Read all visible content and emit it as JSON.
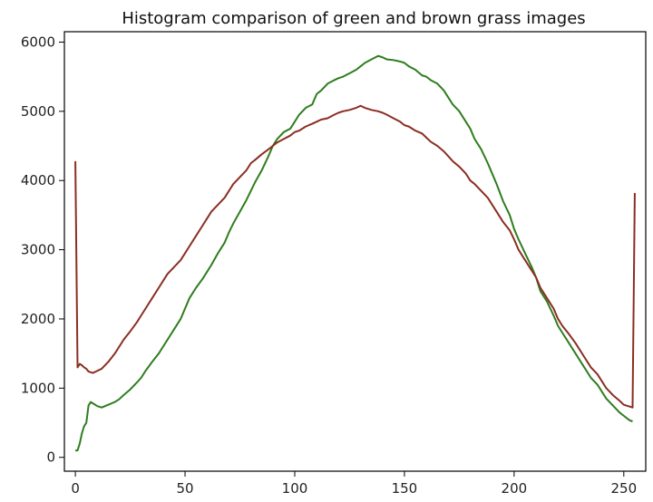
{
  "chart_data": {
    "type": "line",
    "title": "Histogram comparison of green and brown grass images",
    "xlabel": "",
    "ylabel": "",
    "xlim": [
      -5,
      260
    ],
    "ylim": [
      -200,
      6150
    ],
    "xticks": [
      0,
      50,
      100,
      150,
      200,
      250
    ],
    "yticks": [
      0,
      1000,
      2000,
      3000,
      4000,
      5000,
      6000
    ],
    "grid": false,
    "legend": "none",
    "series": [
      {
        "color": "#2e7d1e",
        "points": [
          [
            0,
            100
          ],
          [
            1,
            100
          ],
          [
            2,
            200
          ],
          [
            3,
            350
          ],
          [
            4,
            450
          ],
          [
            5,
            500
          ],
          [
            6,
            750
          ],
          [
            7,
            800
          ],
          [
            8,
            780
          ],
          [
            10,
            740
          ],
          [
            12,
            720
          ],
          [
            15,
            760
          ],
          [
            18,
            800
          ],
          [
            20,
            840
          ],
          [
            22,
            900
          ],
          [
            25,
            980
          ],
          [
            28,
            1080
          ],
          [
            30,
            1150
          ],
          [
            32,
            1250
          ],
          [
            35,
            1380
          ],
          [
            38,
            1500
          ],
          [
            40,
            1600
          ],
          [
            42,
            1700
          ],
          [
            45,
            1850
          ],
          [
            48,
            2000
          ],
          [
            50,
            2150
          ],
          [
            52,
            2300
          ],
          [
            55,
            2450
          ],
          [
            58,
            2580
          ],
          [
            60,
            2680
          ],
          [
            62,
            2780
          ],
          [
            65,
            2950
          ],
          [
            68,
            3100
          ],
          [
            70,
            3250
          ],
          [
            72,
            3380
          ],
          [
            75,
            3550
          ],
          [
            78,
            3720
          ],
          [
            80,
            3850
          ],
          [
            82,
            3980
          ],
          [
            85,
            4150
          ],
          [
            88,
            4350
          ],
          [
            90,
            4500
          ],
          [
            92,
            4600
          ],
          [
            95,
            4700
          ],
          [
            98,
            4750
          ],
          [
            100,
            4850
          ],
          [
            102,
            4950
          ],
          [
            105,
            5050
          ],
          [
            108,
            5100
          ],
          [
            110,
            5250
          ],
          [
            112,
            5300
          ],
          [
            115,
            5400
          ],
          [
            118,
            5450
          ],
          [
            120,
            5480
          ],
          [
            122,
            5500
          ],
          [
            125,
            5550
          ],
          [
            128,
            5600
          ],
          [
            130,
            5650
          ],
          [
            132,
            5700
          ],
          [
            135,
            5750
          ],
          [
            138,
            5800
          ],
          [
            140,
            5780
          ],
          [
            142,
            5750
          ],
          [
            145,
            5740
          ],
          [
            148,
            5720
          ],
          [
            150,
            5700
          ],
          [
            152,
            5650
          ],
          [
            155,
            5600
          ],
          [
            158,
            5520
          ],
          [
            160,
            5500
          ],
          [
            162,
            5450
          ],
          [
            165,
            5400
          ],
          [
            168,
            5300
          ],
          [
            170,
            5200
          ],
          [
            172,
            5100
          ],
          [
            175,
            5000
          ],
          [
            178,
            4850
          ],
          [
            180,
            4750
          ],
          [
            182,
            4600
          ],
          [
            185,
            4450
          ],
          [
            188,
            4250
          ],
          [
            190,
            4100
          ],
          [
            192,
            3950
          ],
          [
            195,
            3700
          ],
          [
            198,
            3500
          ],
          [
            200,
            3300
          ],
          [
            202,
            3150
          ],
          [
            205,
            2950
          ],
          [
            208,
            2750
          ],
          [
            210,
            2600
          ],
          [
            212,
            2400
          ],
          [
            215,
            2250
          ],
          [
            218,
            2050
          ],
          [
            220,
            1900
          ],
          [
            222,
            1800
          ],
          [
            225,
            1650
          ],
          [
            228,
            1500
          ],
          [
            230,
            1400
          ],
          [
            232,
            1300
          ],
          [
            235,
            1150
          ],
          [
            238,
            1050
          ],
          [
            240,
            950
          ],
          [
            242,
            850
          ],
          [
            245,
            750
          ],
          [
            248,
            650
          ],
          [
            250,
            600
          ],
          [
            252,
            550
          ],
          [
            253,
            530
          ],
          [
            254,
            520
          ]
        ]
      },
      {
        "color": "#8b2e22",
        "points": [
          [
            0,
            4280
          ],
          [
            1,
            1300
          ],
          [
            2,
            1350
          ],
          [
            3,
            1330
          ],
          [
            4,
            1300
          ],
          [
            5,
            1280
          ],
          [
            6,
            1240
          ],
          [
            8,
            1220
          ],
          [
            10,
            1250
          ],
          [
            12,
            1280
          ],
          [
            15,
            1380
          ],
          [
            18,
            1500
          ],
          [
            20,
            1600
          ],
          [
            22,
            1700
          ],
          [
            25,
            1820
          ],
          [
            28,
            1950
          ],
          [
            30,
            2050
          ],
          [
            32,
            2150
          ],
          [
            35,
            2300
          ],
          [
            38,
            2450
          ],
          [
            40,
            2550
          ],
          [
            42,
            2650
          ],
          [
            45,
            2750
          ],
          [
            48,
            2850
          ],
          [
            50,
            2950
          ],
          [
            52,
            3050
          ],
          [
            55,
            3200
          ],
          [
            58,
            3350
          ],
          [
            60,
            3450
          ],
          [
            62,
            3550
          ],
          [
            65,
            3650
          ],
          [
            68,
            3750
          ],
          [
            70,
            3850
          ],
          [
            72,
            3950
          ],
          [
            75,
            4050
          ],
          [
            78,
            4150
          ],
          [
            80,
            4250
          ],
          [
            82,
            4300
          ],
          [
            85,
            4380
          ],
          [
            88,
            4450
          ],
          [
            90,
            4500
          ],
          [
            92,
            4550
          ],
          [
            95,
            4600
          ],
          [
            98,
            4650
          ],
          [
            100,
            4700
          ],
          [
            102,
            4720
          ],
          [
            105,
            4780
          ],
          [
            108,
            4820
          ],
          [
            110,
            4850
          ],
          [
            112,
            4880
          ],
          [
            115,
            4900
          ],
          [
            118,
            4950
          ],
          [
            120,
            4980
          ],
          [
            122,
            5000
          ],
          [
            125,
            5020
          ],
          [
            128,
            5050
          ],
          [
            130,
            5080
          ],
          [
            132,
            5050
          ],
          [
            135,
            5020
          ],
          [
            138,
            5000
          ],
          [
            140,
            4980
          ],
          [
            142,
            4950
          ],
          [
            145,
            4900
          ],
          [
            148,
            4850
          ],
          [
            150,
            4800
          ],
          [
            152,
            4780
          ],
          [
            155,
            4720
          ],
          [
            158,
            4680
          ],
          [
            160,
            4620
          ],
          [
            162,
            4560
          ],
          [
            165,
            4500
          ],
          [
            168,
            4420
          ],
          [
            170,
            4350
          ],
          [
            172,
            4280
          ],
          [
            175,
            4200
          ],
          [
            178,
            4100
          ],
          [
            180,
            4000
          ],
          [
            182,
            3950
          ],
          [
            185,
            3850
          ],
          [
            188,
            3750
          ],
          [
            190,
            3650
          ],
          [
            192,
            3550
          ],
          [
            195,
            3400
          ],
          [
            198,
            3280
          ],
          [
            200,
            3150
          ],
          [
            202,
            3000
          ],
          [
            205,
            2850
          ],
          [
            208,
            2700
          ],
          [
            210,
            2600
          ],
          [
            212,
            2450
          ],
          [
            215,
            2300
          ],
          [
            218,
            2150
          ],
          [
            220,
            2000
          ],
          [
            222,
            1900
          ],
          [
            225,
            1780
          ],
          [
            228,
            1650
          ],
          [
            230,
            1550
          ],
          [
            232,
            1450
          ],
          [
            235,
            1300
          ],
          [
            238,
            1200
          ],
          [
            240,
            1100
          ],
          [
            242,
            1000
          ],
          [
            245,
            900
          ],
          [
            248,
            820
          ],
          [
            250,
            760
          ],
          [
            252,
            740
          ],
          [
            254,
            720
          ],
          [
            255,
            3820
          ]
        ]
      }
    ]
  }
}
